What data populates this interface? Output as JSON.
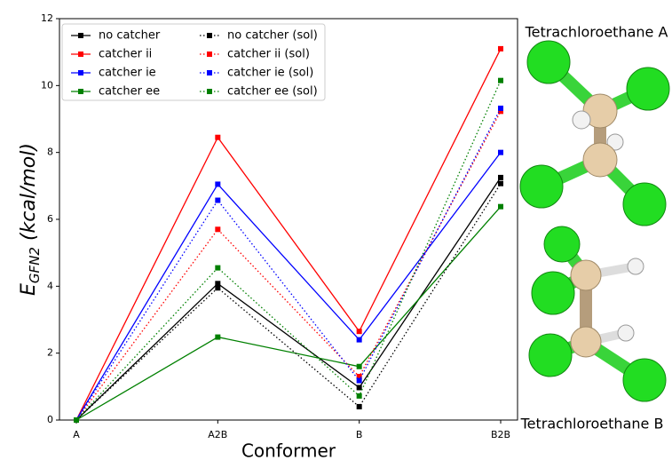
{
  "chart_data": {
    "type": "line",
    "xlabel": "Conformer",
    "ylabel": {
      "main": "E",
      "sub": "GFN2",
      "rest": " (kcal/mol)"
    },
    "categories": [
      "A",
      "A2B",
      "B",
      "B2B"
    ],
    "ylim": [
      0,
      12
    ],
    "yticks": [
      0,
      2,
      4,
      6,
      8,
      10,
      12
    ],
    "legend": "upper left",
    "legend_columns": 2,
    "series": [
      {
        "name": "no catcher",
        "color": "#000000",
        "linestyle": "solid",
        "values": [
          0,
          4.08,
          0.97,
          7.25
        ]
      },
      {
        "name": "catcher ii",
        "color": "#ff0000",
        "linestyle": "solid",
        "values": [
          0,
          8.45,
          2.65,
          11.1
        ]
      },
      {
        "name": "catcher ie",
        "color": "#0000ff",
        "linestyle": "solid",
        "values": [
          0,
          7.05,
          2.4,
          8.0
        ]
      },
      {
        "name": "catcher ee",
        "color": "#008000",
        "linestyle": "solid",
        "values": [
          0,
          2.48,
          1.6,
          6.38
        ]
      },
      {
        "name": "no catcher (sol)",
        "color": "#000000",
        "linestyle": "dotted",
        "values": [
          0,
          3.95,
          0.4,
          7.07
        ]
      },
      {
        "name": "catcher ii (sol)",
        "color": "#ff0000",
        "linestyle": "dotted",
        "values": [
          0,
          5.7,
          1.3,
          9.23
        ]
      },
      {
        "name": "catcher ie (sol)",
        "color": "#0000ff",
        "linestyle": "dotted",
        "values": [
          0,
          6.57,
          1.18,
          9.32
        ]
      },
      {
        "name": "catcher ee (sol)",
        "color": "#008000",
        "linestyle": "dotted",
        "values": [
          0,
          4.55,
          0.72,
          10.15
        ]
      }
    ],
    "annotations": [
      "Tetrachloroethane A",
      "Tetrachloroethane B"
    ]
  }
}
